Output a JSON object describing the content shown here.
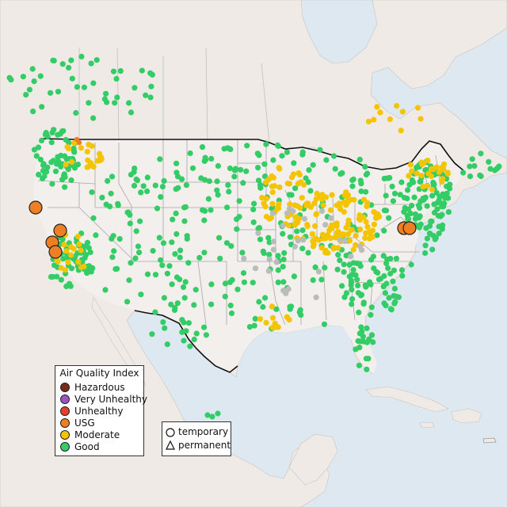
{
  "colors": {
    "water": "#dde8f0",
    "land": "#efeae5",
    "us_land": "#f2efec",
    "good": "#33cc66",
    "moderate": "#f5c400",
    "usg": "#ee7f22",
    "unhealthy": "#e8402a",
    "very_unhealthy": "#9a55c0",
    "hazardous": "#7a2a1a",
    "no_data": "#bbbbbb"
  },
  "legend": {
    "title": "Air Quality Index",
    "categories": [
      {
        "label": "Hazardous",
        "color": "#7a2a1a"
      },
      {
        "label": "Very Unhealthy",
        "color": "#9a55c0"
      },
      {
        "label": "Unhealthy",
        "color": "#e8402a"
      },
      {
        "label": "USG",
        "color": "#ee7f22"
      },
      {
        "label": "Moderate",
        "color": "#f5c400"
      },
      {
        "label": "Good",
        "color": "#33cc66"
      }
    ],
    "monitor_types": [
      {
        "label": "temporary",
        "shape": "circle"
      },
      {
        "label": "permanent",
        "shape": "triangle"
      }
    ]
  }
}
